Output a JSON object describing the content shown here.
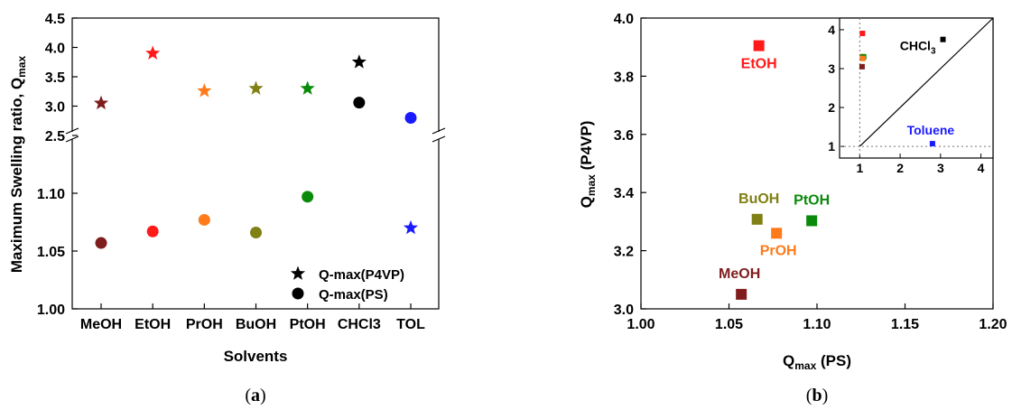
{
  "chart_data": [
    {
      "id": "a",
      "type": "scatter",
      "caption": "a",
      "xlabel": "Solvents",
      "ylabel": "Maximum Swelling ratio, Q",
      "ylabel_sub": "max",
      "categories": [
        "MeOH",
        "EtOH",
        "PrOH",
        "BuOH",
        "PtOH",
        "CHCl3",
        "TOL"
      ],
      "colors": [
        "#7f1d1d",
        "#ff1a1a",
        "#ff7a1a",
        "#808015",
        "#0a8a0a",
        "#000000",
        "#1a1aff"
      ],
      "axis_break": true,
      "upper_axis": {
        "ylim": [
          2.5,
          4.5
        ],
        "ticks": [
          "2.5",
          "3.0",
          "3.5",
          "4.0",
          "4.5"
        ]
      },
      "lower_axis": {
        "ylim": [
          1.0,
          1.15
        ],
        "ticks": [
          "1.00",
          "1.05",
          "1.10"
        ]
      },
      "series": [
        {
          "name": "Q-max(P4VP)",
          "marker": "star",
          "values": [
            3.05,
            3.9,
            3.26,
            3.3,
            3.3,
            3.75,
            1.07
          ]
        },
        {
          "name": "Q-max(PS)",
          "marker": "circle",
          "values": [
            1.057,
            1.067,
            1.077,
            1.066,
            1.097,
            3.06,
            2.8
          ]
        }
      ],
      "legend_position": "bottom-right"
    },
    {
      "id": "b",
      "type": "scatter",
      "caption": "b",
      "xlabel": "Q",
      "xlabel_sub": "max",
      "xlabel_suffix": " (PS)",
      "ylabel": "Q",
      "ylabel_sub": "max",
      "ylabel_suffix": " (P4VP)",
      "xlim": [
        1.0,
        1.2
      ],
      "ylim": [
        3.0,
        4.0
      ],
      "xticks": [
        "1.00",
        "1.05",
        "1.10",
        "1.15",
        "1.20"
      ],
      "yticks": [
        "3.0",
        "3.2",
        "3.4",
        "3.6",
        "3.8",
        "4.0"
      ],
      "points": [
        {
          "label": "EtOH",
          "x": 1.067,
          "y": 3.905,
          "color": "#ff1a1a"
        },
        {
          "label": "BuOH",
          "x": 1.066,
          "y": 3.308,
          "color": "#808015"
        },
        {
          "label": "PtOH",
          "x": 1.097,
          "y": 3.303,
          "color": "#0a8a0a"
        },
        {
          "label": "PrOH",
          "x": 1.077,
          "y": 3.26,
          "color": "#ff7a1a"
        },
        {
          "label": "MeOH",
          "x": 1.057,
          "y": 3.05,
          "color": "#7f1d1d"
        }
      ],
      "inset": {
        "xlim": [
          0.5,
          4.3
        ],
        "ylim": [
          0.7,
          4.3
        ],
        "xticks": [
          "1",
          "2",
          "3",
          "4"
        ],
        "yticks": [
          "1",
          "2",
          "3",
          "4"
        ],
        "points": [
          {
            "label": "",
            "x": 1.067,
            "y": 3.905,
            "color": "#ff1a1a"
          },
          {
            "label": "",
            "x": 1.066,
            "y": 3.308,
            "color": "#808015"
          },
          {
            "label": "",
            "x": 1.097,
            "y": 3.303,
            "color": "#0a8a0a"
          },
          {
            "label": "",
            "x": 1.077,
            "y": 3.26,
            "color": "#ff7a1a"
          },
          {
            "label": "",
            "x": 1.057,
            "y": 3.05,
            "color": "#7f1d1d"
          },
          {
            "label": "CHCl",
            "label_sub": "3",
            "x": 3.06,
            "y": 3.75,
            "color": "#000000"
          },
          {
            "label": "Toluene",
            "x": 2.8,
            "y": 1.07,
            "color": "#1a1aff"
          }
        ]
      }
    }
  ]
}
